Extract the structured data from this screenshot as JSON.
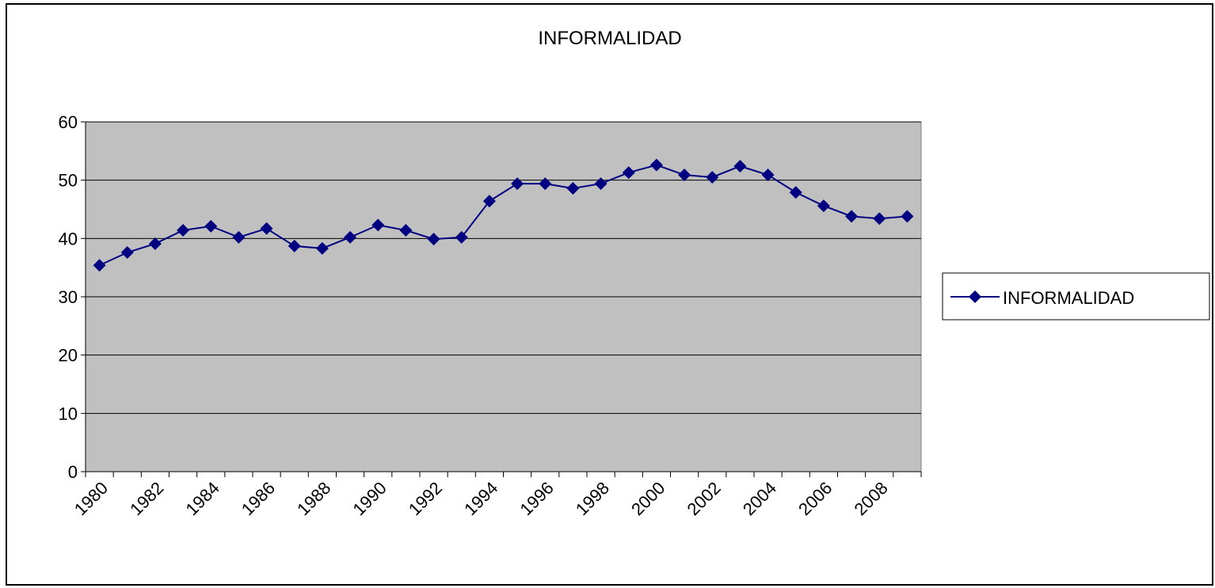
{
  "chart_data": {
    "type": "line",
    "title": "INFORMALIDAD",
    "categories": [
      "1980",
      null,
      "1982",
      null,
      "1984",
      null,
      "1986",
      null,
      "1988",
      null,
      "1990",
      null,
      "1992",
      null,
      "1994",
      null,
      "1996",
      null,
      "1998",
      null,
      "2000",
      null,
      "2002",
      null,
      "2004",
      null,
      "2006",
      null,
      "2008",
      null
    ],
    "series": [
      {
        "name": "INFORMALIDAD",
        "color": "#000080",
        "values": [
          35.4,
          37.6,
          39.1,
          41.4,
          42.1,
          40.2,
          41.7,
          38.7,
          38.3,
          40.2,
          42.3,
          41.4,
          39.9,
          40.2,
          46.4,
          49.4,
          49.4,
          48.6,
          49.4,
          51.3,
          52.6,
          50.9,
          50.5,
          52.4,
          50.9,
          47.9,
          45.6,
          43.8,
          43.4,
          43.8
        ]
      }
    ],
    "ylim": [
      0,
      60
    ],
    "yticks": [
      0,
      10,
      20,
      30,
      40,
      50,
      60
    ],
    "grid": true,
    "legend": "right"
  }
}
